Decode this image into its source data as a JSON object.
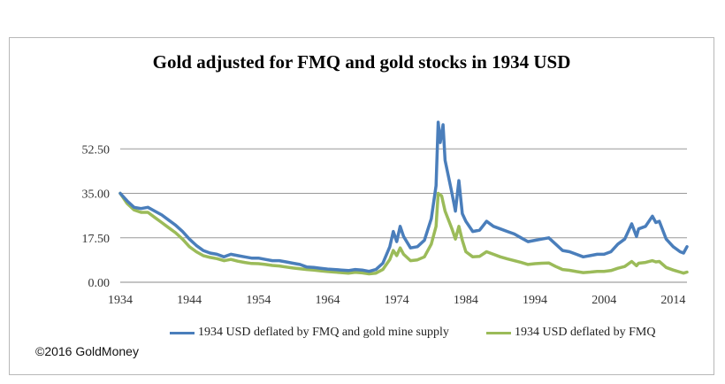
{
  "chart_data": {
    "type": "line",
    "title": "Gold adjusted for FMQ and gold stocks in 1934 USD",
    "xlabel": "",
    "ylabel": "",
    "xlim": [
      1934,
      2016
    ],
    "ylim": [
      0,
      70
    ],
    "x_ticks": [
      "1934",
      "1944",
      "1954",
      "1964",
      "1974",
      "1984",
      "1994",
      "2004",
      "2014"
    ],
    "y_ticks": [
      "0.00",
      "17.50",
      "35.00",
      "52.50"
    ],
    "grid": "horizontal",
    "legend_position": "bottom",
    "colors": {
      "blue": "#4a7ebb",
      "green": "#9bbb59",
      "grid": "#999999"
    },
    "series": [
      {
        "name": "1934 USD deflated by FMQ and gold mine supply",
        "color": "#4a7ebb",
        "points": [
          [
            1934,
            35
          ],
          [
            1935,
            32
          ],
          [
            1936,
            29.5
          ],
          [
            1937,
            29
          ],
          [
            1938,
            29.5
          ],
          [
            1939,
            28
          ],
          [
            1940,
            26.5
          ],
          [
            1941,
            24.5
          ],
          [
            1942,
            22.5
          ],
          [
            1943,
            20
          ],
          [
            1944,
            17
          ],
          [
            1945,
            14.5
          ],
          [
            1946,
            12.5
          ],
          [
            1947,
            11.5
          ],
          [
            1948,
            11
          ],
          [
            1949,
            10
          ],
          [
            1950,
            11
          ],
          [
            1951,
            10.5
          ],
          [
            1952,
            10
          ],
          [
            1953,
            9.5
          ],
          [
            1954,
            9.5
          ],
          [
            1955,
            9
          ],
          [
            1956,
            8.5
          ],
          [
            1957,
            8.5
          ],
          [
            1958,
            8
          ],
          [
            1959,
            7.5
          ],
          [
            1960,
            7
          ],
          [
            1961,
            6
          ],
          [
            1962,
            5.8
          ],
          [
            1963,
            5.5
          ],
          [
            1964,
            5.2
          ],
          [
            1965,
            5
          ],
          [
            1966,
            4.8
          ],
          [
            1967,
            4.6
          ],
          [
            1968,
            5
          ],
          [
            1969,
            4.8
          ],
          [
            1970,
            4.3
          ],
          [
            1971,
            5
          ],
          [
            1972,
            7.5
          ],
          [
            1973,
            14
          ],
          [
            1973.5,
            20
          ],
          [
            1974,
            16
          ],
          [
            1974.5,
            22
          ],
          [
            1975,
            18
          ],
          [
            1976,
            13.5
          ],
          [
            1977,
            14
          ],
          [
            1978,
            16.5
          ],
          [
            1979,
            25
          ],
          [
            1979.7,
            38
          ],
          [
            1980,
            63
          ],
          [
            1980.3,
            55
          ],
          [
            1980.7,
            62
          ],
          [
            1981,
            48
          ],
          [
            1982,
            35
          ],
          [
            1982.5,
            28
          ],
          [
            1983,
            40
          ],
          [
            1983.5,
            27
          ],
          [
            1984,
            24
          ],
          [
            1985,
            20
          ],
          [
            1986,
            20.5
          ],
          [
            1987,
            24
          ],
          [
            1988,
            22
          ],
          [
            1989,
            21
          ],
          [
            1990,
            20
          ],
          [
            1991,
            19
          ],
          [
            1992,
            17.5
          ],
          [
            1993,
            16
          ],
          [
            1994,
            16.5
          ],
          [
            1995,
            17
          ],
          [
            1996,
            17.5
          ],
          [
            1997,
            15
          ],
          [
            1998,
            12.5
          ],
          [
            1999,
            12
          ],
          [
            2000,
            11
          ],
          [
            2001,
            10
          ],
          [
            2002,
            10.5
          ],
          [
            2003,
            11
          ],
          [
            2004,
            11
          ],
          [
            2005,
            12
          ],
          [
            2006,
            15
          ],
          [
            2007,
            17
          ],
          [
            2008,
            23
          ],
          [
            2008.7,
            18
          ],
          [
            2009,
            21
          ],
          [
            2010,
            22
          ],
          [
            2011,
            26
          ],
          [
            2011.5,
            23.5
          ],
          [
            2012,
            24
          ],
          [
            2013,
            17
          ],
          [
            2014,
            14
          ],
          [
            2015,
            12
          ],
          [
            2015.5,
            11.5
          ],
          [
            2016,
            14
          ]
        ]
      },
      {
        "name": "1934 USD deflated by FMQ",
        "color": "#9bbb59",
        "points": [
          [
            1934,
            35
          ],
          [
            1935,
            31
          ],
          [
            1936,
            28.5
          ],
          [
            1937,
            27.5
          ],
          [
            1938,
            27.5
          ],
          [
            1939,
            25.5
          ],
          [
            1940,
            23.5
          ],
          [
            1941,
            21.5
          ],
          [
            1942,
            19.5
          ],
          [
            1943,
            17
          ],
          [
            1944,
            14
          ],
          [
            1945,
            12
          ],
          [
            1946,
            10.5
          ],
          [
            1947,
            9.8
          ],
          [
            1948,
            9.3
          ],
          [
            1949,
            8.5
          ],
          [
            1950,
            9
          ],
          [
            1951,
            8.3
          ],
          [
            1952,
            7.8
          ],
          [
            1953,
            7.4
          ],
          [
            1954,
            7.3
          ],
          [
            1955,
            7
          ],
          [
            1956,
            6.6
          ],
          [
            1957,
            6.4
          ],
          [
            1958,
            6
          ],
          [
            1959,
            5.6
          ],
          [
            1960,
            5.3
          ],
          [
            1961,
            5
          ],
          [
            1962,
            4.8
          ],
          [
            1963,
            4.5
          ],
          [
            1964,
            4.2
          ],
          [
            1965,
            4
          ],
          [
            1966,
            3.8
          ],
          [
            1967,
            3.6
          ],
          [
            1968,
            3.9
          ],
          [
            1969,
            3.7
          ],
          [
            1970,
            3.3
          ],
          [
            1971,
            3.6
          ],
          [
            1972,
            5
          ],
          [
            1973,
            9
          ],
          [
            1973.5,
            12.5
          ],
          [
            1974,
            10.5
          ],
          [
            1974.5,
            13.5
          ],
          [
            1975,
            11
          ],
          [
            1976,
            8.5
          ],
          [
            1977,
            8.8
          ],
          [
            1978,
            10
          ],
          [
            1979,
            15
          ],
          [
            1979.7,
            22
          ],
          [
            1980,
            35
          ],
          [
            1980.5,
            34
          ],
          [
            1981,
            28
          ],
          [
            1982,
            21
          ],
          [
            1982.5,
            17
          ],
          [
            1983,
            22
          ],
          [
            1983.5,
            16.5
          ],
          [
            1984,
            12
          ],
          [
            1985,
            10
          ],
          [
            1986,
            10.2
          ],
          [
            1987,
            12
          ],
          [
            1988,
            11
          ],
          [
            1989,
            10
          ],
          [
            1990,
            9.2
          ],
          [
            1991,
            8.5
          ],
          [
            1992,
            7.8
          ],
          [
            1993,
            7
          ],
          [
            1994,
            7.3
          ],
          [
            1995,
            7.5
          ],
          [
            1996,
            7.6
          ],
          [
            1997,
            6.2
          ],
          [
            1998,
            5
          ],
          [
            1999,
            4.7
          ],
          [
            2000,
            4.2
          ],
          [
            2001,
            3.8
          ],
          [
            2002,
            4
          ],
          [
            2003,
            4.3
          ],
          [
            2004,
            4.3
          ],
          [
            2005,
            4.6
          ],
          [
            2006,
            5.5
          ],
          [
            2007,
            6.2
          ],
          [
            2008,
            8.2
          ],
          [
            2008.7,
            6.5
          ],
          [
            2009,
            7.5
          ],
          [
            2010,
            7.8
          ],
          [
            2011,
            8.5
          ],
          [
            2011.5,
            8
          ],
          [
            2012,
            8.2
          ],
          [
            2013,
            5.8
          ],
          [
            2014,
            4.8
          ],
          [
            2015,
            4
          ],
          [
            2015.5,
            3.6
          ],
          [
            2016,
            4
          ]
        ]
      }
    ]
  },
  "copyright": "©2016 GoldMoney"
}
